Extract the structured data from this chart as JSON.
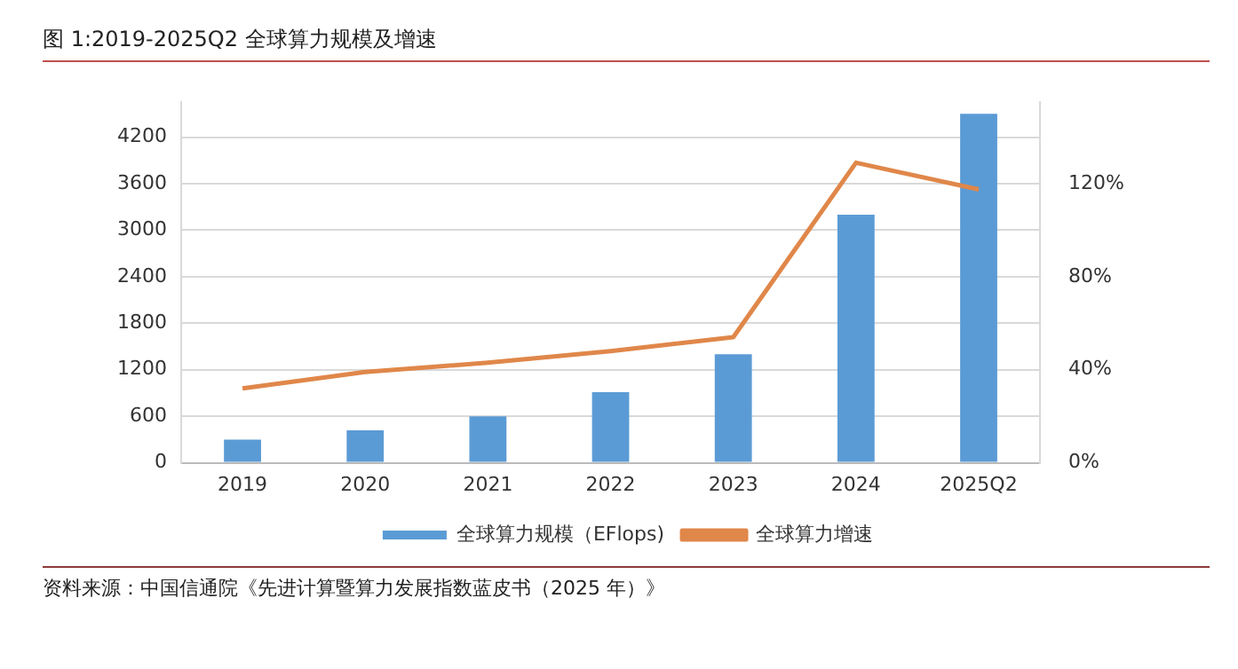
{
  "chart_data": {
    "type": "bar",
    "title": "图 1:2019-2025Q2 全球算力规模及增速",
    "categories": [
      "2019",
      "2020",
      "2021",
      "2022",
      "2023",
      "2024",
      "2025Q2"
    ],
    "series": [
      {
        "name": "全球算力规模（EFlops)",
        "color": "#5b9bd5",
        "values": [
          300,
          420,
          600,
          910,
          1400,
          3200,
          4500
        ]
      },
      {
        "name": "全球算力增速",
        "type": "line",
        "axis": "y2",
        "color": "#e0874a",
        "values": [
          32,
          39,
          43,
          48,
          54,
          129,
          117.5
        ]
      }
    ],
    "ylim": [
      0,
      4650
    ],
    "yticks": [
      0,
      600,
      1200,
      1800,
      2400,
      3000,
      3600,
      4200
    ],
    "y2lim": [
      0,
      155
    ],
    "y2ticks": [
      {
        "value": 0,
        "label": "0%"
      },
      {
        "value": 40,
        "label": "40%"
      },
      {
        "value": 80,
        "label": "80%"
      },
      {
        "value": 120,
        "label": "120%"
      }
    ],
    "grid": "y",
    "legend": "bottom",
    "marker": "none",
    "annotations": [
      "资料来源：中国信通院《先进计算暨算力发展指数蓝皮书（2025 年）》"
    ]
  }
}
